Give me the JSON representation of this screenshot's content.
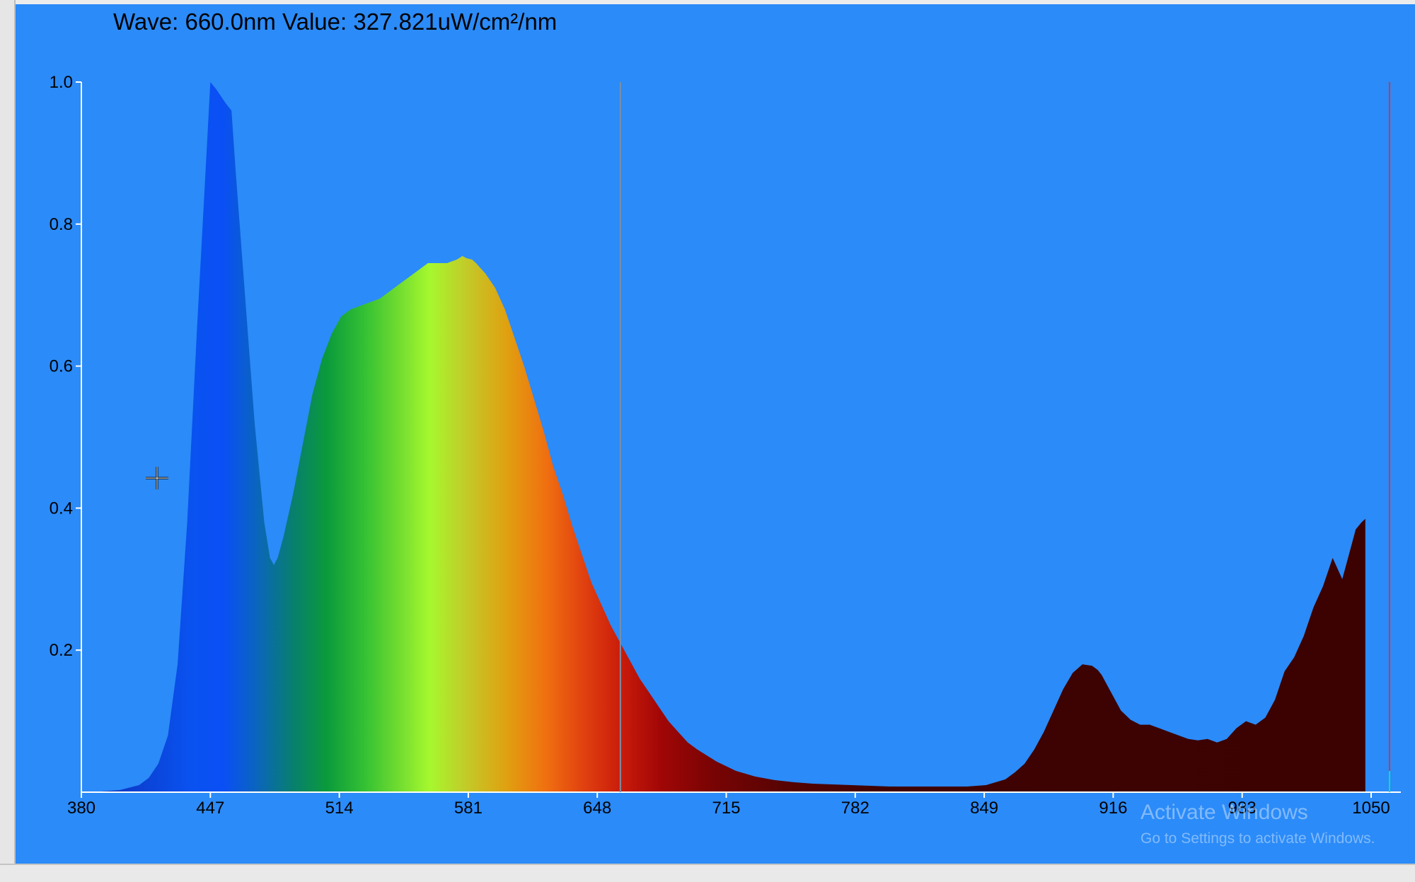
{
  "readout": {
    "text": "Wave: 660.0nm Value: 327.821uW/cm²/nm"
  },
  "watermark": {
    "title": "Activate Windows",
    "subtitle": "Go to Settings to activate Windows."
  },
  "icons": {
    "cursor": "crosshair-cursor-icon"
  },
  "colors": {
    "background": "#2b8bf8",
    "axis": "#ffffff",
    "cursor_line": "#7a8fa6",
    "right_marker": "#e03030",
    "teal_marker": "#00e0c0"
  },
  "chart_data": {
    "type": "area",
    "title": "",
    "xlabel": "",
    "ylabel": "",
    "xlim": [
      380,
      1050
    ],
    "ylim": [
      0,
      1.0
    ],
    "x_ticks": [
      "380",
      "447",
      "514",
      "581",
      "648",
      "715",
      "782",
      "849",
      "916",
      "983",
      "1050"
    ],
    "y_ticks": [
      "0.2",
      "0.4",
      "0.6",
      "0.8",
      "1.0"
    ],
    "grid": false,
    "cursor_wavelength": 660.0,
    "fill": "spectrum-colored by wavelength",
    "series": [
      {
        "x": [
          380,
          390,
          400,
          410,
          415,
          420,
          425,
          430,
          435,
          440,
          445,
          447,
          450,
          455,
          458,
          460,
          465,
          470,
          475,
          478,
          480,
          482,
          485,
          490,
          495,
          500,
          505,
          510,
          515,
          520,
          525,
          530,
          535,
          540,
          545,
          550,
          555,
          560,
          565,
          570,
          575,
          578,
          580,
          583,
          585,
          590,
          595,
          600,
          605,
          610,
          615,
          620,
          625,
          630,
          635,
          640,
          645,
          650,
          655,
          660,
          665,
          670,
          675,
          680,
          685,
          690,
          695,
          700,
          710,
          720,
          730,
          740,
          750,
          760,
          770,
          780,
          790,
          800,
          810,
          820,
          830,
          840,
          850,
          860,
          865,
          870,
          875,
          880,
          885,
          890,
          895,
          900,
          905,
          908,
          910,
          915,
          920,
          925,
          930,
          935,
          940,
          945,
          950,
          955,
          960,
          965,
          970,
          975,
          980,
          985,
          990,
          995,
          1000,
          1005,
          1010,
          1015,
          1020,
          1025,
          1030,
          1035,
          1040,
          1042,
          1045,
          1047
        ],
        "values": [
          0.0,
          0.001,
          0.003,
          0.01,
          0.02,
          0.04,
          0.08,
          0.18,
          0.38,
          0.65,
          0.9,
          1.0,
          0.99,
          0.97,
          0.96,
          0.88,
          0.7,
          0.52,
          0.38,
          0.33,
          0.32,
          0.33,
          0.36,
          0.42,
          0.49,
          0.56,
          0.61,
          0.645,
          0.67,
          0.68,
          0.685,
          0.69,
          0.695,
          0.705,
          0.715,
          0.725,
          0.735,
          0.745,
          0.745,
          0.745,
          0.75,
          0.755,
          0.752,
          0.75,
          0.745,
          0.73,
          0.71,
          0.68,
          0.64,
          0.6,
          0.555,
          0.51,
          0.46,
          0.42,
          0.375,
          0.335,
          0.295,
          0.265,
          0.235,
          0.21,
          0.185,
          0.16,
          0.14,
          0.12,
          0.1,
          0.085,
          0.07,
          0.06,
          0.043,
          0.03,
          0.022,
          0.017,
          0.014,
          0.012,
          0.011,
          0.01,
          0.009,
          0.008,
          0.008,
          0.008,
          0.008,
          0.008,
          0.01,
          0.018,
          0.028,
          0.04,
          0.06,
          0.085,
          0.115,
          0.145,
          0.168,
          0.18,
          0.178,
          0.172,
          0.165,
          0.14,
          0.115,
          0.102,
          0.095,
          0.095,
          0.09,
          0.085,
          0.08,
          0.075,
          0.073,
          0.075,
          0.07,
          0.075,
          0.09,
          0.1,
          0.095,
          0.105,
          0.13,
          0.17,
          0.19,
          0.22,
          0.26,
          0.29,
          0.33,
          0.3,
          0.35,
          0.37,
          0.38,
          0.385
        ]
      }
    ]
  }
}
